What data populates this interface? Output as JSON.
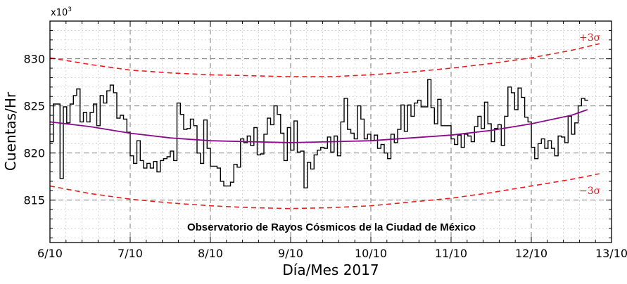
{
  "chart_data": {
    "type": "line",
    "title": "",
    "annotation": "Observatorio de Rayos Cósmicos de la Ciudad de México",
    "xlabel": "Día/Mes 2017",
    "ylabel": "Cuentas/Hr",
    "y_multiplier": "x10",
    "y_multiplier_exp": "3",
    "xlim": [
      0,
      7
    ],
    "ylim": [
      810.5,
      834
    ],
    "x_ticks": [
      {
        "value": 0,
        "label": "6/10"
      },
      {
        "value": 1,
        "label": "7/10"
      },
      {
        "value": 2,
        "label": "8/10"
      },
      {
        "value": 3,
        "label": "9/10"
      },
      {
        "value": 4,
        "label": "10/10"
      },
      {
        "value": 5,
        "label": "11/10"
      },
      {
        "value": 6,
        "label": "12/10"
      },
      {
        "value": 7,
        "label": "13/10"
      }
    ],
    "y_ticks": [
      {
        "value": 815,
        "label": "815"
      },
      {
        "value": 820,
        "label": "820"
      },
      {
        "value": 825,
        "label": "825"
      },
      {
        "value": 830,
        "label": "830"
      }
    ],
    "grid": true,
    "colors": {
      "counts": "#000000",
      "fit": "#8b0a8b",
      "sigma": "#ee1c1c"
    },
    "sigma_labels": {
      "upper": "+3σ",
      "lower": "−3σ"
    },
    "series": [
      {
        "style": "step",
        "step": 0.04167,
        "x_start": 0,
        "values": [
          821.2,
          825.2,
          825.2,
          817.3,
          824.9,
          823.2,
          825.2,
          826.1,
          826.8,
          823.3,
          824.3,
          823.3,
          824.3,
          825.2,
          822.9,
          826.1,
          825.3,
          826.6,
          827.2,
          826.4,
          823.7,
          824.0,
          823.6,
          822.2,
          819.7,
          818.9,
          821.3,
          819.2,
          818.4,
          818.9,
          818.4,
          819.1,
          818.0,
          819.2,
          819.4,
          819.6,
          820.2,
          819.2,
          825.3,
          824.1,
          822.5,
          822.6,
          823.6,
          822.9,
          820.0,
          818.9,
          823.5,
          820.5,
          818.6,
          818.6,
          818.4,
          817.0,
          816.5,
          816.5,
          816.9,
          818.8,
          818.5,
          821.5,
          821.1,
          821.8,
          820.8,
          822.7,
          819.8,
          819.9,
          822.0,
          823.7,
          823.0,
          825.0,
          824.1,
          822.1,
          819.2,
          822.7,
          820.3,
          823.4,
          820.1,
          820.2,
          816.3,
          819.0,
          818.3,
          819.8,
          820.3,
          820.6,
          820.5,
          821.7,
          820.1,
          821.8,
          819.7,
          823.3,
          825.8,
          822.5,
          822.1,
          821.5,
          825.0,
          823.6,
          821.5,
          822.0,
          821.3,
          821.9,
          820.5,
          820.9,
          820.0,
          819.4,
          822.0,
          821.1,
          822.5,
          825.1,
          822.3,
          825.1,
          823.9,
          825.3,
          825.6,
          824.9,
          824.9,
          827.8,
          824.8,
          823.1,
          825.7,
          822.9,
          822.9,
          822.9,
          821.5,
          820.9,
          821.9,
          820.6,
          822.0,
          821.8,
          821.2,
          822.8,
          823.9,
          822.6,
          825.4,
          823.1,
          821.2,
          822.6,
          823.0,
          820.8,
          823.9,
          827.0,
          826.4,
          824.6,
          826.9,
          825.9,
          823.8,
          823.3,
          820.6,
          819.4,
          821.0,
          821.5,
          820.5,
          821.3,
          820.5,
          819.7,
          821.8,
          821.7,
          821.1,
          823.9,
          822.0,
          823.2,
          825.0,
          825.8,
          825.6
        ]
      },
      {
        "style": "curve",
        "x": [
          0,
          0.5,
          1,
          1.5,
          2,
          2.5,
          3,
          3.5,
          4,
          4.5,
          5,
          5.5,
          6,
          6.5,
          6.7
        ],
        "values": [
          823.3,
          822.8,
          822.1,
          821.6,
          821.3,
          821.2,
          821.1,
          821.2,
          821.3,
          821.6,
          821.9,
          822.4,
          823.1,
          824.0,
          824.6
        ]
      },
      {
        "style": "dashed",
        "x": [
          0,
          0.5,
          1,
          1.5,
          2,
          2.5,
          3,
          3.5,
          4,
          4.5,
          5,
          5.5,
          6,
          6.5,
          6.85
        ],
        "values": [
          830.1,
          829.4,
          828.8,
          828.5,
          828.3,
          828.2,
          828.1,
          828.1,
          828.3,
          828.6,
          829.0,
          829.5,
          830.1,
          830.9,
          831.6
        ]
      },
      {
        "style": "dashed",
        "x": [
          0,
          0.5,
          1,
          1.5,
          2,
          2.5,
          3,
          3.5,
          4,
          4.5,
          5,
          5.5,
          6,
          6.5,
          6.85
        ],
        "values": [
          816.5,
          815.7,
          815.1,
          814.7,
          814.4,
          814.2,
          814.1,
          814.2,
          814.4,
          814.8,
          815.2,
          815.8,
          816.5,
          817.2,
          817.8
        ]
      }
    ]
  }
}
